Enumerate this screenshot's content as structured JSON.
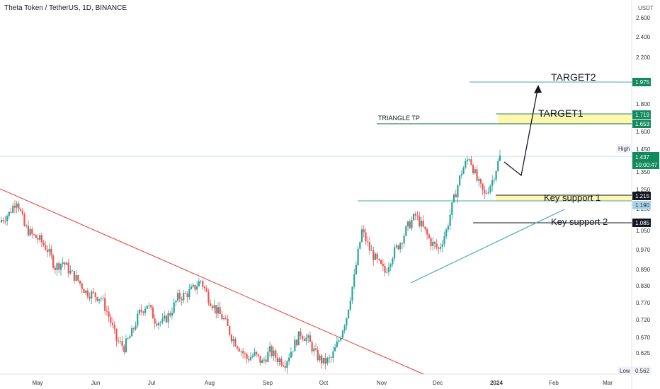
{
  "symbol_title": "Theta Token / TetherUS, 1D, BINANCE",
  "currency": "USDT",
  "colors": {
    "up": "#26a69a",
    "down": "#ef5350",
    "trendline_red": "#e53935",
    "trendline_blue": "#4aa8c4",
    "hline_green": "#2e8b57",
    "zone_yellow": "#fff6b0",
    "badge_green": "#138a5e",
    "badge_dark": "#131722",
    "badge_light": "#a9d4e8"
  },
  "chart_data": {
    "type": "candlestick",
    "y_scale": "log",
    "y_ticks": [
      "2.600",
      "2.400",
      "2.200",
      "1.800",
      "1.600",
      "1.450",
      "1.350",
      "1.250",
      "1.150",
      "1.050",
      "0.970",
      "0.890",
      "0.830",
      "0.770",
      "0.720",
      "0.670",
      "0.625"
    ],
    "x_ticks": [
      "May",
      "Jun",
      "Jul",
      "Aug",
      "Sep",
      "Oct",
      "Nov",
      "Dec",
      "2024",
      "Feb",
      "Mar"
    ],
    "price_badges": [
      {
        "value": "1.975",
        "style": "green"
      },
      {
        "value": "1.719",
        "style": "green"
      },
      {
        "value": "1.653",
        "style": "green"
      },
      {
        "value": "1.437",
        "style": "green",
        "sub": "10:00:47"
      },
      {
        "value": "1.215",
        "style": "dark"
      },
      {
        "value": "1.190",
        "style": "light"
      },
      {
        "value": "1.085",
        "style": "dark"
      },
      {
        "value": "0.562",
        "style": "plain"
      }
    ],
    "high_label": "High",
    "low_label": "Low",
    "annotations": {
      "target2": "TARGET2",
      "target1": "TARGET1",
      "triangle_tp": "TRIANGLE TP",
      "key_support_1": "Key support 1",
      "key_support_2": "Key support 2"
    },
    "levels": {
      "target2": 1.975,
      "target1_top": 1.719,
      "triangle_tp": 1.653,
      "last_price": 1.437,
      "high": 1.44,
      "key_support_1": 1.215,
      "key_support_1_low": 1.19,
      "resistance": 1.2,
      "key_support_2": 1.085,
      "low": 0.562
    },
    "close_path": [
      1.1,
      1.13,
      1.2,
      1.07,
      1.03,
      1.01,
      0.97,
      0.9,
      0.92,
      0.88,
      0.85,
      0.81,
      0.8,
      0.79,
      0.73,
      0.66,
      0.64,
      0.68,
      0.74,
      0.77,
      0.72,
      0.71,
      0.74,
      0.79,
      0.8,
      0.82,
      0.85,
      0.79,
      0.75,
      0.72,
      0.67,
      0.64,
      0.61,
      0.62,
      0.6,
      0.63,
      0.61,
      0.6,
      0.64,
      0.68,
      0.66,
      0.62,
      0.6,
      0.61,
      0.66,
      0.73,
      0.86,
      1.05,
      0.97,
      0.92,
      0.88,
      0.95,
      1.0,
      1.07,
      1.12,
      1.06,
      1.0,
      0.97,
      1.05,
      1.2,
      1.35,
      1.44,
      1.3,
      1.22,
      1.3,
      1.437
    ]
  }
}
